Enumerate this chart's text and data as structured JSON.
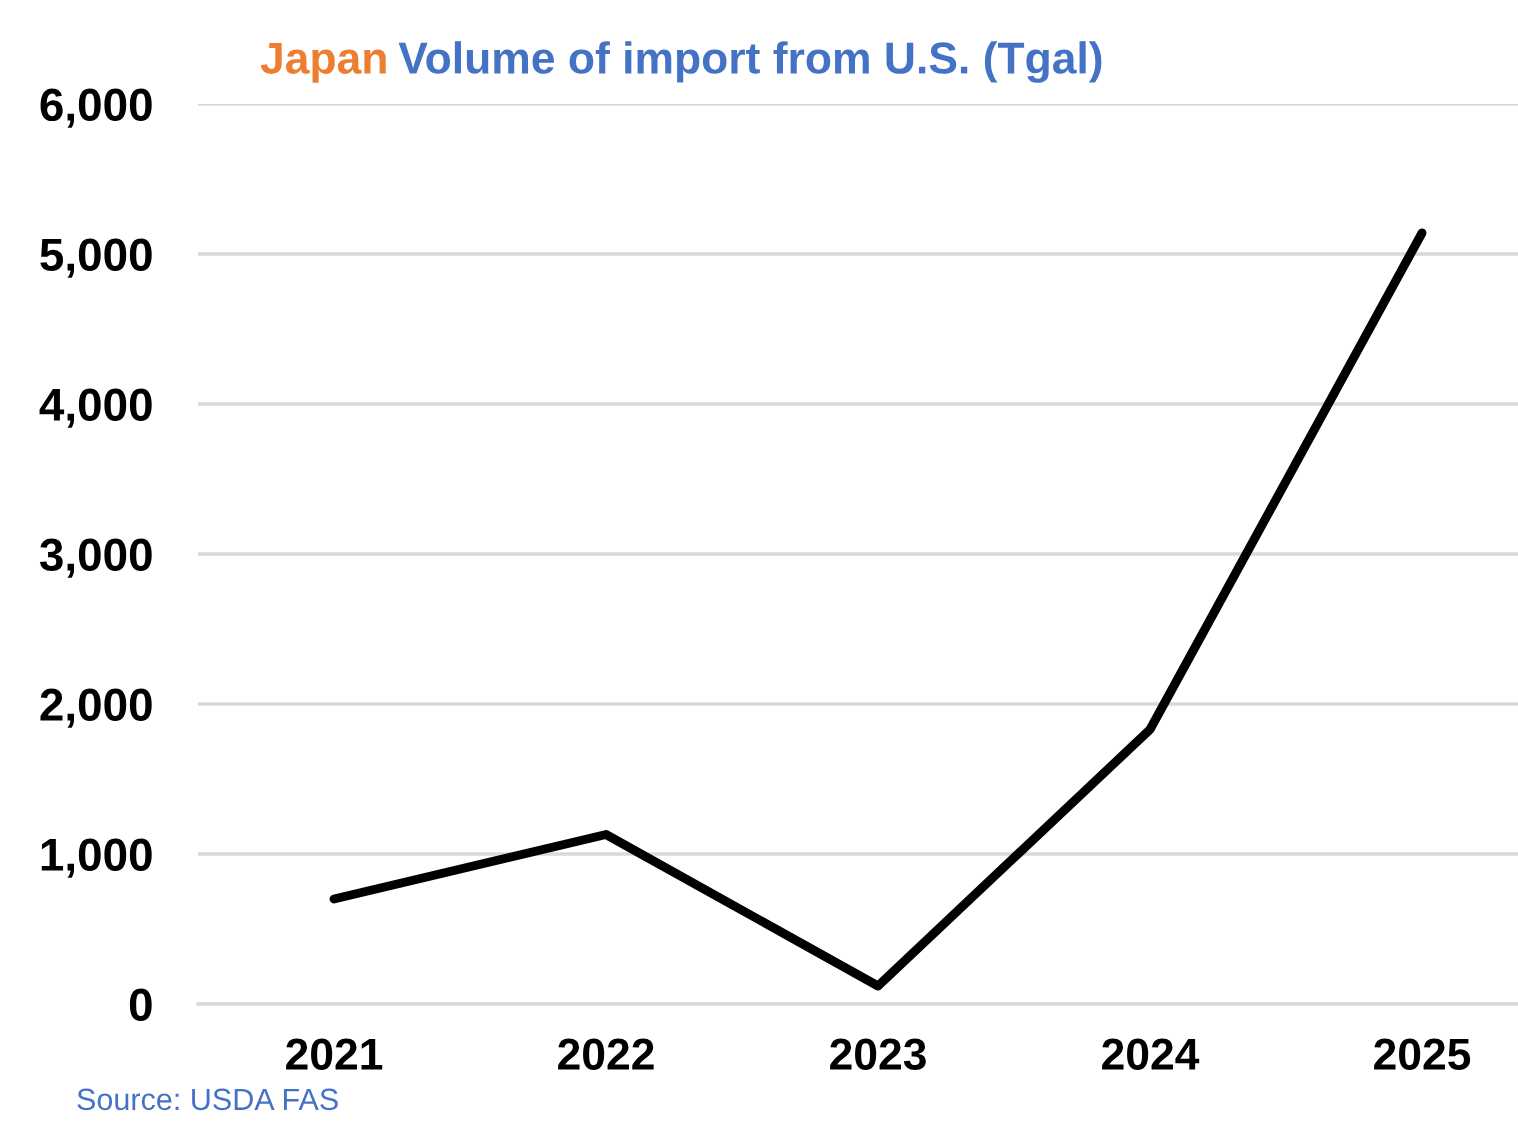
{
  "chart_data": {
    "type": "line",
    "title": "Japan",
    "subtitle": "Volume of import from U.S. (Tgal)",
    "categories": [
      "2021",
      "2022",
      "2023",
      "2024",
      "2025"
    ],
    "series": [
      {
        "color": "#000000",
        "values": [
          700,
          1130,
          120,
          1830,
          5140
        ]
      }
    ],
    "ylim": [
      0,
      6000
    ],
    "yticks": [
      0,
      {
        "value": 1000,
        "label": "1,000"
      },
      {
        "value": 2000,
        "label": "2,000"
      },
      {
        "value": 3000,
        "label": "3,000"
      },
      {
        "value": 4000,
        "label": "4,000"
      },
      {
        "value": 5000,
        "label": "5,000"
      },
      {
        "value": 6000,
        "label": "6,000"
      }
    ],
    "grid": "y",
    "line_style": "solid",
    "annotations": [
      "Source: USDA FAS"
    ]
  }
}
